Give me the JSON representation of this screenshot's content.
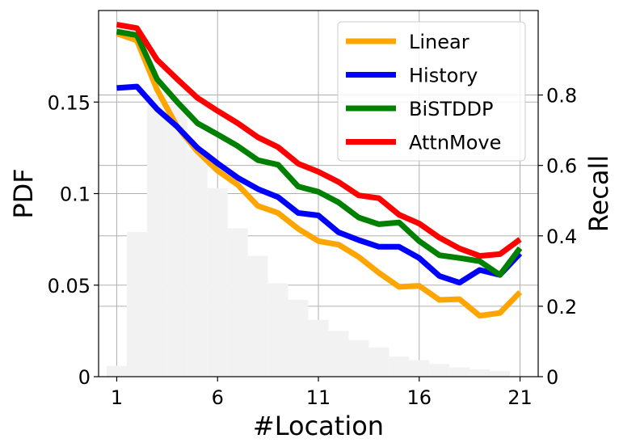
{
  "chart_data": {
    "type": "line",
    "xlabel": "#Location",
    "ylabel_left": "PDF",
    "ylabel_right": "Recall",
    "x": [
      1,
      2,
      3,
      4,
      5,
      6,
      7,
      8,
      9,
      10,
      11,
      12,
      13,
      14,
      15,
      16,
      17,
      18,
      19,
      20,
      21
    ],
    "x_ticks": [
      1,
      6,
      11,
      16,
      21
    ],
    "x_tick_labels": [
      "1",
      "6",
      "11",
      "16",
      "21"
    ],
    "xlim": [
      0.1,
      21.9
    ],
    "left_axis": {
      "ylim": [
        0,
        0.2
      ],
      "ticks": [
        0,
        0.05,
        0.1,
        0.15
      ],
      "tick_labels": [
        "0",
        "0.05",
        "0.1",
        "0.15"
      ]
    },
    "right_axis": {
      "ylim": [
        0,
        1.04
      ],
      "ticks": [
        0,
        0.2,
        0.4,
        0.6,
        0.8
      ],
      "tick_labels": [
        "0",
        "0.2",
        "0.4",
        "0.6",
        "0.8"
      ]
    },
    "histogram": {
      "axis": "left",
      "color": "#f2f2f2",
      "bins": [
        0.5,
        1.5,
        2.5,
        3.5,
        4.5,
        5.5,
        6.5,
        7.5,
        8.5,
        9.5,
        10.5,
        11.5,
        12.5,
        13.5,
        14.5,
        15.5,
        16.5,
        17.5,
        18.5,
        19.5,
        20.5
      ],
      "values": [
        0.006,
        0.079,
        0.154,
        0.149,
        0.124,
        0.103,
        0.081,
        0.066,
        0.051,
        0.042,
        0.031,
        0.025,
        0.02,
        0.016,
        0.011,
        0.009,
        0.007,
        0.005,
        0.004,
        0.003
      ]
    },
    "series": [
      {
        "name": "Linear",
        "color": "#ffa500",
        "axis": "right",
        "values": [
          0.975,
          0.955,
          0.815,
          0.71,
          0.64,
          0.585,
          0.545,
          0.485,
          0.465,
          0.42,
          0.385,
          0.375,
          0.34,
          0.295,
          0.255,
          0.258,
          0.218,
          0.22,
          0.173,
          0.181,
          0.24
        ]
      },
      {
        "name": "History",
        "color": "#0000ff",
        "axis": "right",
        "values": [
          0.82,
          0.824,
          0.76,
          0.71,
          0.65,
          0.606,
          0.565,
          0.533,
          0.51,
          0.465,
          0.458,
          0.41,
          0.388,
          0.369,
          0.369,
          0.337,
          0.286,
          0.267,
          0.303,
          0.289,
          0.35
        ]
      },
      {
        "name": "BiSTDDP",
        "color": "#008000",
        "axis": "right",
        "values": [
          0.98,
          0.97,
          0.845,
          0.78,
          0.72,
          0.688,
          0.655,
          0.615,
          0.602,
          0.54,
          0.525,
          0.495,
          0.452,
          0.433,
          0.438,
          0.385,
          0.345,
          0.337,
          0.328,
          0.289,
          0.365
        ]
      },
      {
        "name": "AttnMove",
        "color": "#ff0000",
        "axis": "right",
        "values": [
          1.0,
          0.99,
          0.9,
          0.845,
          0.792,
          0.755,
          0.72,
          0.68,
          0.652,
          0.605,
          0.582,
          0.553,
          0.515,
          0.507,
          0.46,
          0.435,
          0.395,
          0.364,
          0.343,
          0.348,
          0.39
        ]
      }
    ],
    "legend_position": "top-right",
    "grid": true
  }
}
